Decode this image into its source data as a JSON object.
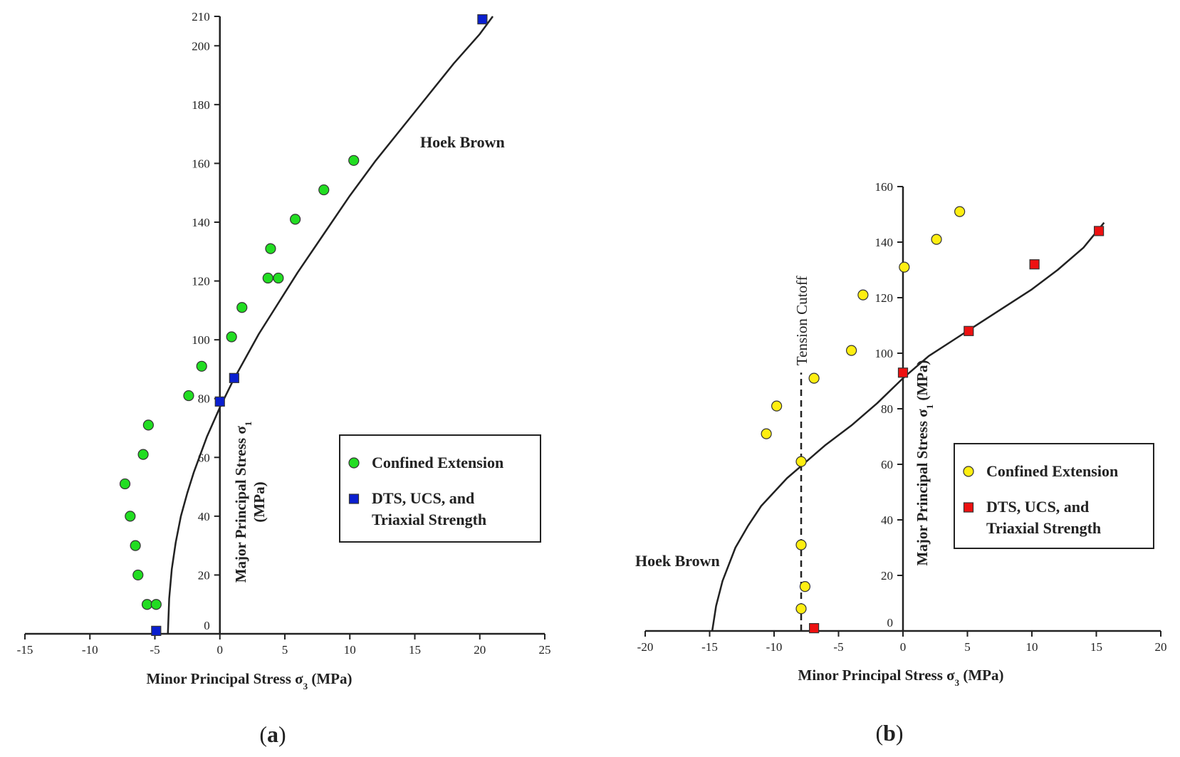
{
  "chart_data": [
    {
      "type": "scatter",
      "panel_label": "(a)",
      "panel_letter": "a",
      "xlabel": "Minor Principal Stress σ3 (MPa)",
      "ylabel": "Major Principal Stress σ1 (MPa)",
      "xlim": [
        -15,
        25
      ],
      "ylim": [
        0,
        210
      ],
      "xticks": [
        -15,
        -10,
        -5,
        0,
        5,
        10,
        15,
        20,
        25
      ],
      "yticks": [
        0,
        20,
        40,
        60,
        80,
        100,
        120,
        140,
        160,
        180,
        200,
        210
      ],
      "curve": {
        "name": "Hoek Brown",
        "x": [
          -4.0,
          -3.9,
          -3.7,
          -3.4,
          -3.0,
          -2.5,
          -2.0,
          -1.5,
          -1.0,
          -0.5,
          0,
          1,
          2,
          3,
          4,
          5,
          6,
          8,
          10,
          12,
          14,
          16,
          18,
          20,
          21
        ],
        "y": [
          0,
          12,
          22,
          31,
          40,
          48,
          55,
          61,
          67,
          72,
          77,
          86,
          94,
          102,
          109,
          116,
          123,
          136,
          149,
          161,
          172,
          183,
          194,
          204,
          210
        ]
      },
      "series": [
        {
          "name": "Confined Extension",
          "marker": "circle",
          "color": "#22dd22",
          "x": [
            10.3,
            8.0,
            5.8,
            3.9,
            4.5,
            3.7,
            1.7,
            0.9,
            -1.4,
            -2.4,
            -5.5,
            -5.9,
            -7.3,
            -6.9,
            -6.5,
            -6.3,
            -5.6,
            -4.9
          ],
          "y": [
            161,
            151,
            141,
            131,
            121,
            121,
            111,
            101,
            91,
            81,
            71,
            61,
            51,
            40,
            30,
            20,
            10,
            10
          ]
        },
        {
          "name": "DTS, UCS, and Triaxial Strength",
          "marker": "square",
          "color": "#0a1fd0",
          "x": [
            -4.9,
            0,
            1.1,
            20.2
          ],
          "y": [
            1,
            79,
            87,
            209
          ]
        }
      ],
      "legend_position": "center-right"
    },
    {
      "type": "scatter",
      "panel_label": "(b)",
      "panel_letter": "b",
      "xlabel": "Minor Principal Stress σ3 (MPa)",
      "ylabel": "Major Principal Stress σ1 (MPa)",
      "xlim": [
        -20,
        20
      ],
      "ylim": [
        0,
        160
      ],
      "xticks": [
        -20,
        -15,
        -10,
        -5,
        0,
        5,
        10,
        15,
        20
      ],
      "yticks": [
        0,
        20,
        40,
        60,
        80,
        100,
        120,
        140,
        160
      ],
      "curve": {
        "name": "Hoek Brown",
        "x": [
          -14.8,
          -14.5,
          -14.0,
          -13.0,
          -12.0,
          -11.0,
          -10.0,
          -9.0,
          -8.0,
          -6.0,
          -4.0,
          -2.0,
          0,
          2,
          4,
          6,
          8,
          10,
          12,
          14,
          15.6
        ],
        "y": [
          0,
          9,
          18,
          30,
          38,
          45,
          50,
          55,
          59,
          67,
          74,
          82,
          91,
          99,
          105,
          111,
          117,
          123,
          130,
          138,
          147
        ]
      },
      "cutoff": {
        "label": "Tension Cutoff",
        "x": -7.9,
        "y_top": 93
      },
      "series": [
        {
          "name": "Confined Extension",
          "marker": "circle",
          "color": "#ffee11",
          "x": [
            4.4,
            2.6,
            0.1,
            -3.1,
            -4.0,
            -6.9,
            -9.8,
            -10.6,
            -7.9,
            -7.9,
            -7.6,
            -7.9
          ],
          "y": [
            151,
            141,
            131,
            121,
            101,
            91,
            81,
            71,
            61,
            31,
            16,
            8
          ]
        },
        {
          "name": "DTS, UCS, and Triaxial Strength",
          "marker": "square",
          "color": "#ee1111",
          "x": [
            -6.9,
            0,
            5.1,
            10.2,
            15.2
          ],
          "y": [
            1,
            93,
            108,
            132,
            144
          ]
        }
      ],
      "legend_position": "center-right"
    }
  ]
}
